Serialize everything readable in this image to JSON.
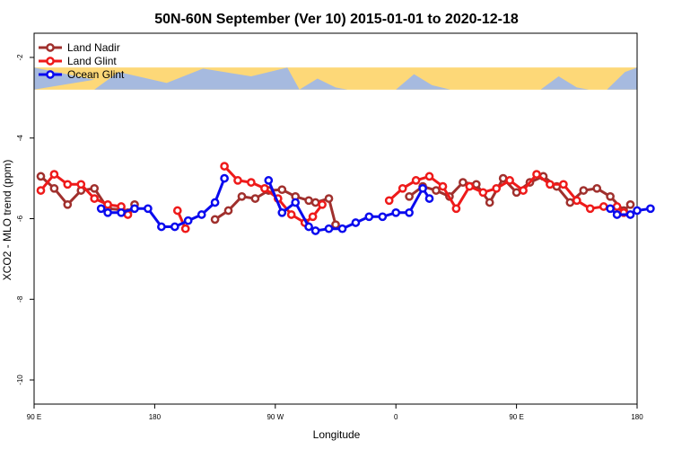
{
  "chart_data": {
    "type": "line",
    "title": "50N-60N September (Ver 10)   2015-01-01 to 2020-12-18",
    "xlabel": "Longitude",
    "ylabel": "XCO2 - MLO trend (ppm)",
    "xlim": [
      90,
      540
    ],
    "ylim": [
      -10.6,
      -1.4
    ],
    "xticks": [
      {
        "value": 90,
        "label": "90 E"
      },
      {
        "value": 180,
        "label": "180"
      },
      {
        "value": 270,
        "label": "90 W"
      },
      {
        "value": 360,
        "label": "0"
      },
      {
        "value": 450,
        "label": "90 E"
      },
      {
        "value": 540,
        "label": "180"
      }
    ],
    "yticks": [
      {
        "value": -2,
        "label": "-2"
      },
      {
        "value": -4,
        "label": "-4"
      },
      {
        "value": -6,
        "label": "-6"
      },
      {
        "value": -8,
        "label": "-8"
      },
      {
        "value": -10,
        "label": "-10"
      }
    ],
    "map_band": {
      "y_top": -2.25,
      "y_bottom": -2.8,
      "ocean_color": "#A6BADF",
      "land_color": "#FDD878"
    },
    "legend_position": "top-left",
    "series": [
      {
        "name": "Land Nadir",
        "color": "#A0302D",
        "segments": [
          [
            [
              95,
              -4.95
            ],
            [
              105,
              -5.25
            ],
            [
              115,
              -5.65
            ],
            [
              125,
              -5.3
            ],
            [
              135,
              -5.25
            ],
            [
              145,
              -5.75
            ],
            [
              155,
              -5.78
            ],
            [
              160,
              -5.85
            ],
            [
              165,
              -5.65
            ]
          ],
          [
            [
              225,
              -6.02
            ],
            [
              235,
              -5.8
            ],
            [
              245,
              -5.45
            ],
            [
              255,
              -5.5
            ],
            [
              265,
              -5.3
            ],
            [
              275,
              -5.28
            ],
            [
              285,
              -5.45
            ],
            [
              295,
              -5.55
            ],
            [
              300,
              -5.6
            ],
            [
              310,
              -5.5
            ],
            [
              315,
              -6.15
            ]
          ],
          [
            [
              370,
              -5.45
            ],
            [
              380,
              -5.2
            ],
            [
              390,
              -5.3
            ],
            [
              400,
              -5.45
            ],
            [
              410,
              -5.1
            ],
            [
              420,
              -5.15
            ],
            [
              430,
              -5.6
            ],
            [
              440,
              -5.0
            ],
            [
              450,
              -5.35
            ],
            [
              460,
              -5.1
            ],
            [
              470,
              -4.95
            ],
            [
              480,
              -5.2
            ],
            [
              490,
              -5.6
            ],
            [
              500,
              -5.3
            ],
            [
              510,
              -5.25
            ],
            [
              520,
              -5.45
            ],
            [
              530,
              -5.8
            ],
            [
              535,
              -5.65
            ]
          ]
        ]
      },
      {
        "name": "Land Glint",
        "color": "#EE1A1A",
        "segments": [
          [
            [
              95,
              -5.3
            ],
            [
              105,
              -4.9
            ],
            [
              115,
              -5.15
            ],
            [
              125,
              -5.15
            ],
            [
              135,
              -5.5
            ],
            [
              145,
              -5.65
            ],
            [
              155,
              -5.7
            ],
            [
              160,
              -5.9
            ]
          ],
          [
            [
              197,
              -5.8
            ],
            [
              203,
              -6.25
            ]
          ],
          [
            [
              232,
              -4.7
            ],
            [
              242,
              -5.05
            ],
            [
              252,
              -5.1
            ],
            [
              262,
              -5.25
            ],
            [
              272,
              -5.5
            ],
            [
              282,
              -5.9
            ],
            [
              292,
              -6.1
            ],
            [
              298,
              -5.95
            ],
            [
              305,
              -5.65
            ]
          ],
          [
            [
              355,
              -5.55
            ],
            [
              365,
              -5.25
            ],
            [
              375,
              -5.05
            ],
            [
              385,
              -4.95
            ],
            [
              395,
              -5.2
            ],
            [
              405,
              -5.75
            ],
            [
              415,
              -5.2
            ],
            [
              425,
              -5.35
            ],
            [
              435,
              -5.25
            ],
            [
              445,
              -5.05
            ],
            [
              455,
              -5.3
            ],
            [
              465,
              -4.9
            ],
            [
              475,
              -5.15
            ],
            [
              485,
              -5.15
            ],
            [
              495,
              -5.55
            ],
            [
              505,
              -5.75
            ],
            [
              515,
              -5.7
            ],
            [
              525,
              -5.7
            ],
            [
              530,
              -5.85
            ]
          ]
        ]
      },
      {
        "name": "Ocean Glint",
        "color": "#0A0AEE",
        "segments": [
          [
            [
              140,
              -5.75
            ],
            [
              145,
              -5.85
            ],
            [
              155,
              -5.85
            ],
            [
              165,
              -5.75
            ],
            [
              175,
              -5.75
            ],
            [
              185,
              -6.2
            ],
            [
              195,
              -6.2
            ],
            [
              205,
              -6.05
            ],
            [
              215,
              -5.9
            ],
            [
              225,
              -5.6
            ],
            [
              232,
              -5.0
            ]
          ],
          [
            [
              265,
              -5.05
            ],
            [
              275,
              -5.85
            ],
            [
              285,
              -5.6
            ],
            [
              295,
              -6.2
            ],
            [
              300,
              -6.3
            ],
            [
              310,
              -6.25
            ],
            [
              320,
              -6.25
            ],
            [
              330,
              -6.1
            ],
            [
              340,
              -5.95
            ],
            [
              350,
              -5.95
            ],
            [
              360,
              -5.85
            ],
            [
              370,
              -5.85
            ],
            [
              380,
              -5.25
            ],
            [
              385,
              -5.5
            ]
          ],
          [
            [
              520,
              -5.75
            ],
            [
              525,
              -5.9
            ],
            [
              535,
              -5.9
            ],
            [
              540,
              -5.8
            ],
            [
              550,
              -5.75
            ]
          ]
        ]
      }
    ]
  }
}
